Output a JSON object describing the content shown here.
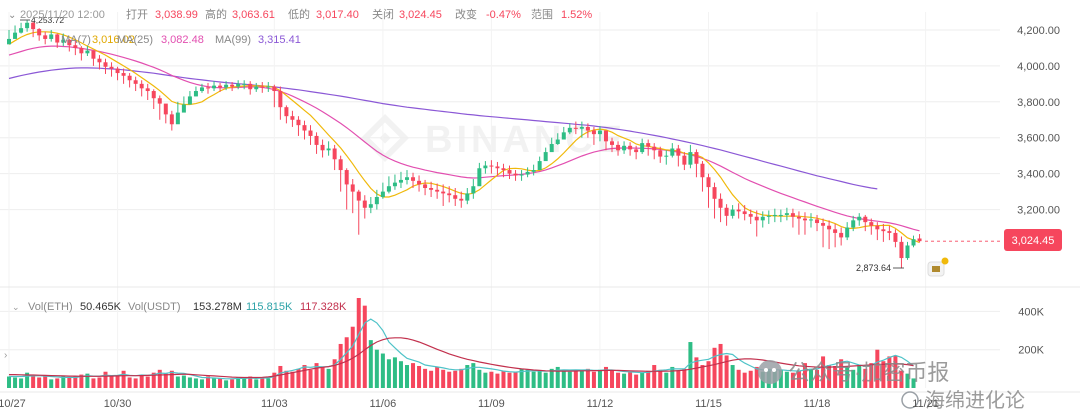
{
  "header": {
    "collapse_icon": "chevron-down-icon",
    "datetime": "2025/11/20 12:00",
    "open_label": "打开",
    "open_value": "3,038.99",
    "high_label": "高的",
    "high_value": "3,063.61",
    "low_label": "低的",
    "low_value": "3,017.40",
    "close_label": "关闭",
    "close_value": "3,024.45",
    "change_label": "改变",
    "change_value": "-0.47%",
    "range_label": "范围",
    "range_value": "1.52%"
  },
  "ma_legend": {
    "ma7_label": "MA(7)",
    "ma7_value": "3,016.02",
    "ma25_label": "MA(25)",
    "ma25_value": "3,082.48",
    "ma99_label": "MA(99)",
    "ma99_value": "3,315.41"
  },
  "vol_legend": {
    "eth_label": "Vol(ETH)",
    "eth_value": "50.465K",
    "usdt_label": "Vol(USDT)",
    "usdt_value": "153.278M",
    "ma5_value": "115.815K",
    "ma10_value": "117.328K"
  },
  "current_price_tag": "3,024.45",
  "max_price_label": "4,253.72",
  "min_price_label": "2,873.64",
  "watermark_brand": "BINANCE",
  "wechat_overlay": {
    "line1": "公众号·加密币报",
    "line2": "海绵进化论"
  },
  "colors": {
    "up": "#2ebd85",
    "down": "#f6465d",
    "ma7": "#f0b90b",
    "ma25": "#e24fb0",
    "ma99": "#8b58d6",
    "vol_ma5": "#4fc3c8",
    "vol_ma10": "#c2304d",
    "grid": "#eeeeee",
    "axis_text": "#555555"
  },
  "chart_data": {
    "type": "candlestick",
    "price_axis": {
      "ticks": [
        3200,
        3400,
        3600,
        3800,
        4000,
        4200
      ],
      "tick_labels": [
        "3,200.00",
        "3,400.00",
        "3,600.00",
        "3,800.00",
        "4,000.00",
        "4,200.00"
      ],
      "range": [
        2780,
        4300
      ]
    },
    "volume_axis": {
      "ticks": [
        200,
        400
      ],
      "tick_labels": [
        "200K",
        "400K"
      ],
      "range": [
        0,
        470
      ]
    },
    "x_labels": [
      "10/27",
      "10/30",
      "11/03",
      "11/06",
      "11/09",
      "11/12",
      "11/15",
      "11/18",
      "11/21"
    ],
    "x_label_index": [
      0,
      18,
      44,
      62,
      80,
      98,
      116,
      134,
      152
    ],
    "candle_closes": [
      4150,
      4185,
      4210,
      4240,
      4205,
      4170,
      4150,
      4175,
      4130,
      4145,
      4115,
      4100,
      4070,
      4085,
      4040,
      4020,
      3995,
      3985,
      3960,
      3945,
      3920,
      3900,
      3875,
      3860,
      3820,
      3790,
      3730,
      3675,
      3740,
      3785,
      3830,
      3860,
      3880,
      3875,
      3890,
      3880,
      3895,
      3885,
      3900,
      3900,
      3870,
      3885,
      3880,
      3885,
      3860,
      3770,
      3720,
      3700,
      3670,
      3640,
      3610,
      3560,
      3530,
      3540,
      3480,
      3420,
      3340,
      3300,
      3250,
      3210,
      3230,
      3270,
      3300,
      3330,
      3350,
      3365,
      3380,
      3360,
      3340,
      3320,
      3310,
      3300,
      3290,
      3280,
      3260,
      3250,
      3290,
      3330,
      3430,
      3445,
      3440,
      3430,
      3420,
      3400,
      3390,
      3395,
      3410,
      3420,
      3470,
      3520,
      3565,
      3590,
      3630,
      3655,
      3650,
      3660,
      3640,
      3620,
      3640,
      3580,
      3560,
      3530,
      3555,
      3535,
      3520,
      3570,
      3550,
      3530,
      3495,
      3500,
      3540,
      3500,
      3450,
      3520,
      3455,
      3380,
      3325,
      3260,
      3210,
      3165,
      3200,
      3190,
      3175,
      3160,
      3140,
      3160,
      3165,
      3170,
      3170,
      3180,
      3160,
      3150,
      3140,
      3145,
      3125,
      3110,
      3090,
      3070,
      3045,
      3100,
      3140,
      3160,
      3130,
      3110,
      3090,
      3080,
      3070,
      3020,
      2930,
      3000,
      3035,
      3024
    ],
    "candle_highs": [
      4200,
      4225,
      4240,
      4253.72,
      4245,
      4210,
      4190,
      4200,
      4180,
      4180,
      4150,
      4140,
      4110,
      4110,
      4085,
      4060,
      4040,
      4020,
      3995,
      3985,
      3960,
      3940,
      3920,
      3900,
      3870,
      3835,
      3780,
      3750,
      3800,
      3830,
      3860,
      3885,
      3900,
      3905,
      3915,
      3905,
      3915,
      3910,
      3920,
      3920,
      3915,
      3905,
      3910,
      3910,
      3895,
      3885,
      3780,
      3750,
      3720,
      3695,
      3670,
      3630,
      3590,
      3580,
      3560,
      3500,
      3430,
      3370,
      3310,
      3280,
      3270,
      3310,
      3350,
      3385,
      3395,
      3410,
      3420,
      3405,
      3390,
      3365,
      3355,
      3345,
      3340,
      3330,
      3320,
      3300,
      3320,
      3370,
      3460,
      3470,
      3475,
      3465,
      3455,
      3445,
      3420,
      3420,
      3435,
      3450,
      3495,
      3545,
      3600,
      3625,
      3660,
      3680,
      3690,
      3690,
      3680,
      3660,
      3665,
      3640,
      3600,
      3580,
      3580,
      3575,
      3555,
      3595,
      3590,
      3570,
      3550,
      3530,
      3570,
      3560,
      3520,
      3560,
      3535,
      3470,
      3400,
      3350,
      3290,
      3230,
      3225,
      3235,
      3225,
      3200,
      3195,
      3190,
      3195,
      3205,
      3200,
      3210,
      3205,
      3190,
      3185,
      3180,
      3170,
      3150,
      3140,
      3120,
      3100,
      3130,
      3165,
      3180,
      3170,
      3150,
      3130,
      3120,
      3110,
      3090,
      3050,
      3020,
      3055,
      3063.61
    ],
    "candle_lows": [
      4130,
      4150,
      4180,
      4190,
      4160,
      4140,
      4120,
      4135,
      4100,
      4110,
      4080,
      4060,
      4030,
      4055,
      4000,
      3980,
      3955,
      3940,
      3920,
      3900,
      3880,
      3860,
      3830,
      3810,
      3760,
      3700,
      3680,
      3640,
      3700,
      3745,
      3800,
      3830,
      3850,
      3845,
      3860,
      3855,
      3865,
      3860,
      3870,
      3870,
      3840,
      3855,
      3850,
      3855,
      3770,
      3700,
      3680,
      3660,
      3610,
      3590,
      3560,
      3510,
      3490,
      3500,
      3420,
      3300,
      3200,
      3180,
      3060,
      3150,
      3180,
      3200,
      3260,
      3290,
      3310,
      3320,
      3340,
      3320,
      3300,
      3280,
      3270,
      3260,
      3220,
      3240,
      3220,
      3210,
      3230,
      3260,
      3380,
      3400,
      3400,
      3390,
      3380,
      3370,
      3360,
      3360,
      3380,
      3390,
      3420,
      3480,
      3530,
      3560,
      3600,
      3620,
      3620,
      3600,
      3600,
      3560,
      3580,
      3530,
      3520,
      3500,
      3510,
      3500,
      3480,
      3510,
      3500,
      3480,
      3460,
      3450,
      3490,
      3440,
      3420,
      3430,
      3380,
      3300,
      3210,
      3150,
      3130,
      3110,
      3150,
      3150,
      3140,
      3120,
      3050,
      3100,
      3120,
      3130,
      3130,
      3140,
      3100,
      3060,
      3060,
      3100,
      3080,
      2990,
      2980,
      2990,
      3000,
      3030,
      3080,
      3110,
      3080,
      3060,
      3030,
      3020,
      3030,
      2990,
      2873.64,
      2920,
      2990,
      3017.4
    ],
    "candle_opens": [
      4120,
      4150,
      4185,
      4210,
      4240,
      4205,
      4170,
      4150,
      4175,
      4130,
      4145,
      4115,
      4100,
      4070,
      4085,
      4040,
      4020,
      3995,
      3985,
      3960,
      3945,
      3920,
      3900,
      3875,
      3860,
      3820,
      3790,
      3730,
      3675,
      3740,
      3785,
      3830,
      3860,
      3880,
      3875,
      3890,
      3880,
      3895,
      3885,
      3900,
      3900,
      3870,
      3885,
      3880,
      3885,
      3860,
      3770,
      3720,
      3700,
      3670,
      3640,
      3610,
      3560,
      3530,
      3540,
      3480,
      3420,
      3340,
      3300,
      3250,
      3210,
      3230,
      3270,
      3300,
      3330,
      3350,
      3365,
      3380,
      3360,
      3340,
      3320,
      3310,
      3300,
      3290,
      3280,
      3260,
      3250,
      3290,
      3330,
      3430,
      3445,
      3440,
      3430,
      3420,
      3400,
      3390,
      3395,
      3410,
      3420,
      3470,
      3520,
      3565,
      3590,
      3630,
      3655,
      3650,
      3660,
      3640,
      3620,
      3640,
      3580,
      3560,
      3530,
      3555,
      3535,
      3520,
      3570,
      3550,
      3530,
      3495,
      3500,
      3540,
      3500,
      3450,
      3520,
      3455,
      3380,
      3325,
      3260,
      3210,
      3165,
      3200,
      3190,
      3175,
      3160,
      3140,
      3160,
      3165,
      3170,
      3170,
      3180,
      3160,
      3150,
      3140,
      3145,
      3125,
      3110,
      3090,
      3070,
      3045,
      3100,
      3140,
      3160,
      3130,
      3110,
      3090,
      3080,
      3070,
      3020,
      2930,
      3000,
      3038.99
    ],
    "volumes": [
      60,
      55,
      50,
      80,
      70,
      55,
      60,
      45,
      50,
      65,
      55,
      60,
      70,
      75,
      50,
      55,
      85,
      60,
      65,
      90,
      55,
      50,
      70,
      60,
      80,
      95,
      75,
      90,
      60,
      65,
      55,
      50,
      45,
      60,
      55,
      50,
      40,
      45,
      55,
      50,
      60,
      45,
      55,
      50,
      80,
      115,
      90,
      85,
      100,
      120,
      95,
      130,
      110,
      100,
      150,
      230,
      265,
      320,
      470,
      430,
      250,
      200,
      180,
      150,
      160,
      140,
      120,
      130,
      115,
      100,
      90,
      110,
      95,
      85,
      90,
      100,
      120,
      130,
      95,
      80,
      85,
      75,
      90,
      80,
      85,
      100,
      95,
      85,
      90,
      80,
      100,
      110,
      95,
      85,
      95,
      90,
      100,
      85,
      95,
      110,
      90,
      80,
      75,
      85,
      70,
      80,
      90,
      120,
      95,
      80,
      110,
      90,
      100,
      240,
      160,
      120,
      140,
      210,
      230,
      170,
      120,
      95,
      80,
      90,
      110,
      85,
      100,
      90,
      95,
      85,
      80,
      90,
      130,
      100,
      95,
      165,
      120,
      115,
      150,
      110,
      95,
      120,
      100,
      130,
      200,
      140,
      165,
      170,
      90,
      75,
      50
    ],
    "ma7": [
      4120,
      4140,
      4160,
      4175,
      4185,
      4190,
      4190,
      4188,
      4182,
      4173,
      4160,
      4145,
      4128,
      4110,
      4094,
      4077,
      4060,
      4040,
      4020,
      4000,
      3980,
      3958,
      3935,
      3912,
      3888,
      3862,
      3833,
      3802,
      3790,
      3785,
      3785,
      3790,
      3800,
      3822,
      3840,
      3860,
      3875,
      3882,
      3885,
      3888,
      3890,
      3889,
      3888,
      3886,
      3880,
      3862,
      3835,
      3808,
      3780,
      3752,
      3725,
      3690,
      3652,
      3615,
      3580,
      3543,
      3500,
      3455,
      3405,
      3360,
      3318,
      3287,
      3270,
      3270,
      3280,
      3295,
      3310,
      3330,
      3342,
      3348,
      3346,
      3338,
      3328,
      3316,
      3302,
      3290,
      3285,
      3291,
      3310,
      3338,
      3365,
      3392,
      3418,
      3428,
      3430,
      3427,
      3420,
      3415,
      3418,
      3432,
      3455,
      3482,
      3515,
      3550,
      3585,
      3613,
      3633,
      3643,
      3648,
      3643,
      3631,
      3612,
      3598,
      3585,
      3565,
      3555,
      3553,
      3545,
      3540,
      3532,
      3530,
      3526,
      3513,
      3508,
      3503,
      3490,
      3460,
      3423,
      3380,
      3330,
      3283,
      3245,
      3210,
      3192,
      3180,
      3170,
      3167,
      3165,
      3163,
      3163,
      3164,
      3163,
      3160,
      3157,
      3152,
      3143,
      3134,
      3122,
      3105,
      3095,
      3095,
      3099,
      3106,
      3110,
      3110,
      3112,
      3112,
      3095,
      3070,
      3043,
      3030,
      3016
    ],
    "ma25": [
      4060,
      4070,
      4080,
      4090,
      4098,
      4104,
      4108,
      4110,
      4110,
      4108,
      4106,
      4102,
      4098,
      4092,
      4086,
      4080,
      4073,
      4065,
      4056,
      4047,
      4037,
      4027,
      4016,
      4004,
      3992,
      3978,
      3963,
      3947,
      3933,
      3920,
      3908,
      3898,
      3890,
      3884,
      3880,
      3878,
      3878,
      3879,
      3880,
      3882,
      3883,
      3883,
      3880,
      3875,
      3868,
      3858,
      3846,
      3832,
      3816,
      3800,
      3783,
      3765,
      3745,
      3724,
      3702,
      3680,
      3656,
      3630,
      3603,
      3576,
      3550,
      3525,
      3503,
      3485,
      3470,
      3457,
      3446,
      3436,
      3428,
      3420,
      3413,
      3406,
      3400,
      3394,
      3388,
      3382,
      3378,
      3376,
      3377,
      3380,
      3383,
      3386,
      3389,
      3391,
      3393,
      3396,
      3400,
      3405,
      3412,
      3421,
      3432,
      3444,
      3457,
      3471,
      3485,
      3498,
      3510,
      3520,
      3528,
      3535,
      3540,
      3542,
      3543,
      3543,
      3542,
      3541,
      3540,
      3538,
      3535,
      3530,
      3525,
      3520,
      3513,
      3505,
      3496,
      3485,
      3473,
      3458,
      3442,
      3425,
      3407,
      3390,
      3373,
      3358,
      3344,
      3330,
      3316,
      3303,
      3290,
      3278,
      3266,
      3254,
      3242,
      3230,
      3218,
      3207,
      3196,
      3185,
      3174,
      3165,
      3157,
      3150,
      3144,
      3139,
      3135,
      3131,
      3126,
      3119,
      3110,
      3100,
      3090,
      3082
    ],
    "ma99": [
      3930,
      3938,
      3946,
      3953,
      3960,
      3966,
      3971,
      3976,
      3980,
      3983,
      3986,
      3988,
      3989,
      3989,
      3988,
      3987,
      3985,
      3983,
      3981,
      3978,
      3975,
      3971,
      3967,
      3963,
      3959,
      3954,
      3949,
      3944,
      3939,
      3934,
      3930,
      3926,
      3922,
      3918,
      3914,
      3910,
      3907,
      3904,
      3901,
      3898,
      3895,
      3892,
      3889,
      3886,
      3883,
      3879,
      3875,
      3871,
      3867,
      3862,
      3857,
      3852,
      3847,
      3842,
      3837,
      3832,
      3826,
      3820,
      3814,
      3808,
      3802,
      3796,
      3790,
      3785,
      3780,
      3775,
      3770,
      3766,
      3762,
      3758,
      3754,
      3750,
      3746,
      3742,
      3738,
      3734,
      3730,
      3727,
      3723,
      3720,
      3717,
      3714,
      3711,
      3708,
      3705,
      3702,
      3699,
      3696,
      3693,
      3690,
      3687,
      3684,
      3681,
      3678,
      3675,
      3672,
      3669,
      3665,
      3661,
      3657,
      3652,
      3647,
      3642,
      3637,
      3631,
      3625,
      3619,
      3613,
      3607,
      3600,
      3593,
      3586,
      3579,
      3572,
      3564,
      3556,
      3548,
      3540,
      3532,
      3523,
      3514,
      3505,
      3496,
      3487,
      3478,
      3469,
      3460,
      3451,
      3442,
      3433,
      3424,
      3415,
      3406,
      3397,
      3388,
      3380,
      3372,
      3364,
      3356,
      3348,
      3340,
      3333,
      3326,
      3320,
      3315
    ],
    "vol_ma5": [
      60,
      60,
      60,
      62,
      63,
      64,
      62,
      60,
      58,
      55,
      56,
      55,
      60,
      65,
      62,
      62,
      67,
      65,
      66,
      72,
      66,
      64,
      68,
      66,
      70,
      78,
      76,
      82,
      78,
      76,
      70,
      62,
      55,
      54,
      52,
      50,
      48,
      48,
      50,
      50,
      52,
      50,
      52,
      52,
      60,
      78,
      85,
      92,
      100,
      110,
      108,
      112,
      110,
      112,
      120,
      150,
      185,
      220,
      280,
      340,
      360,
      340,
      300,
      240,
      210,
      180,
      155,
      145,
      135,
      120,
      115,
      110,
      105,
      98,
      95,
      95,
      102,
      108,
      108,
      104,
      100,
      95,
      88,
      85,
      83,
      86,
      88,
      90,
      89,
      88,
      90,
      93,
      95,
      94,
      95,
      94,
      95,
      92,
      93,
      95,
      94,
      90,
      86,
      84,
      82,
      80,
      82,
      88,
      92,
      95,
      100,
      100,
      100,
      130,
      140,
      145,
      150,
      165,
      175,
      180,
      175,
      150,
      130,
      115,
      100,
      95,
      92,
      95,
      95,
      92,
      90,
      88,
      95,
      98,
      100,
      110,
      118,
      125,
      135,
      140,
      130,
      120,
      115,
      120,
      135,
      145,
      160,
      170,
      160,
      140,
      115
    ],
    "vol_ma10": [
      70,
      70,
      69,
      68,
      68,
      67,
      66,
      65,
      64,
      63,
      62,
      62,
      61,
      61,
      61,
      61,
      62,
      62,
      63,
      64,
      64,
      64,
      65,
      66,
      67,
      68,
      69,
      70,
      71,
      72,
      71,
      69,
      67,
      65,
      63,
      61,
      59,
      57,
      56,
      55,
      55,
      55,
      56,
      58,
      62,
      68,
      74,
      80,
      86,
      92,
      98,
      104,
      108,
      112,
      118,
      128,
      140,
      156,
      176,
      200,
      222,
      240,
      252,
      260,
      262,
      262,
      258,
      250,
      240,
      228,
      215,
      202,
      190,
      178,
      168,
      158,
      150,
      143,
      136,
      130,
      124,
      118,
      113,
      108,
      104,
      100,
      97,
      94,
      92,
      90,
      89,
      88,
      88,
      88,
      89,
      90,
      90,
      91,
      91,
      92,
      92,
      92,
      91,
      90,
      89,
      88,
      87,
      87,
      87,
      88,
      89,
      91,
      93,
      98,
      104,
      110,
      116,
      122,
      130,
      138,
      145,
      150,
      152,
      152,
      150,
      146,
      141,
      136,
      130,
      125,
      120,
      116,
      113,
      111,
      109,
      109,
      109,
      110,
      111,
      113,
      115,
      117,
      119,
      121,
      123,
      124,
      125,
      126,
      125,
      122,
      117
    ]
  }
}
